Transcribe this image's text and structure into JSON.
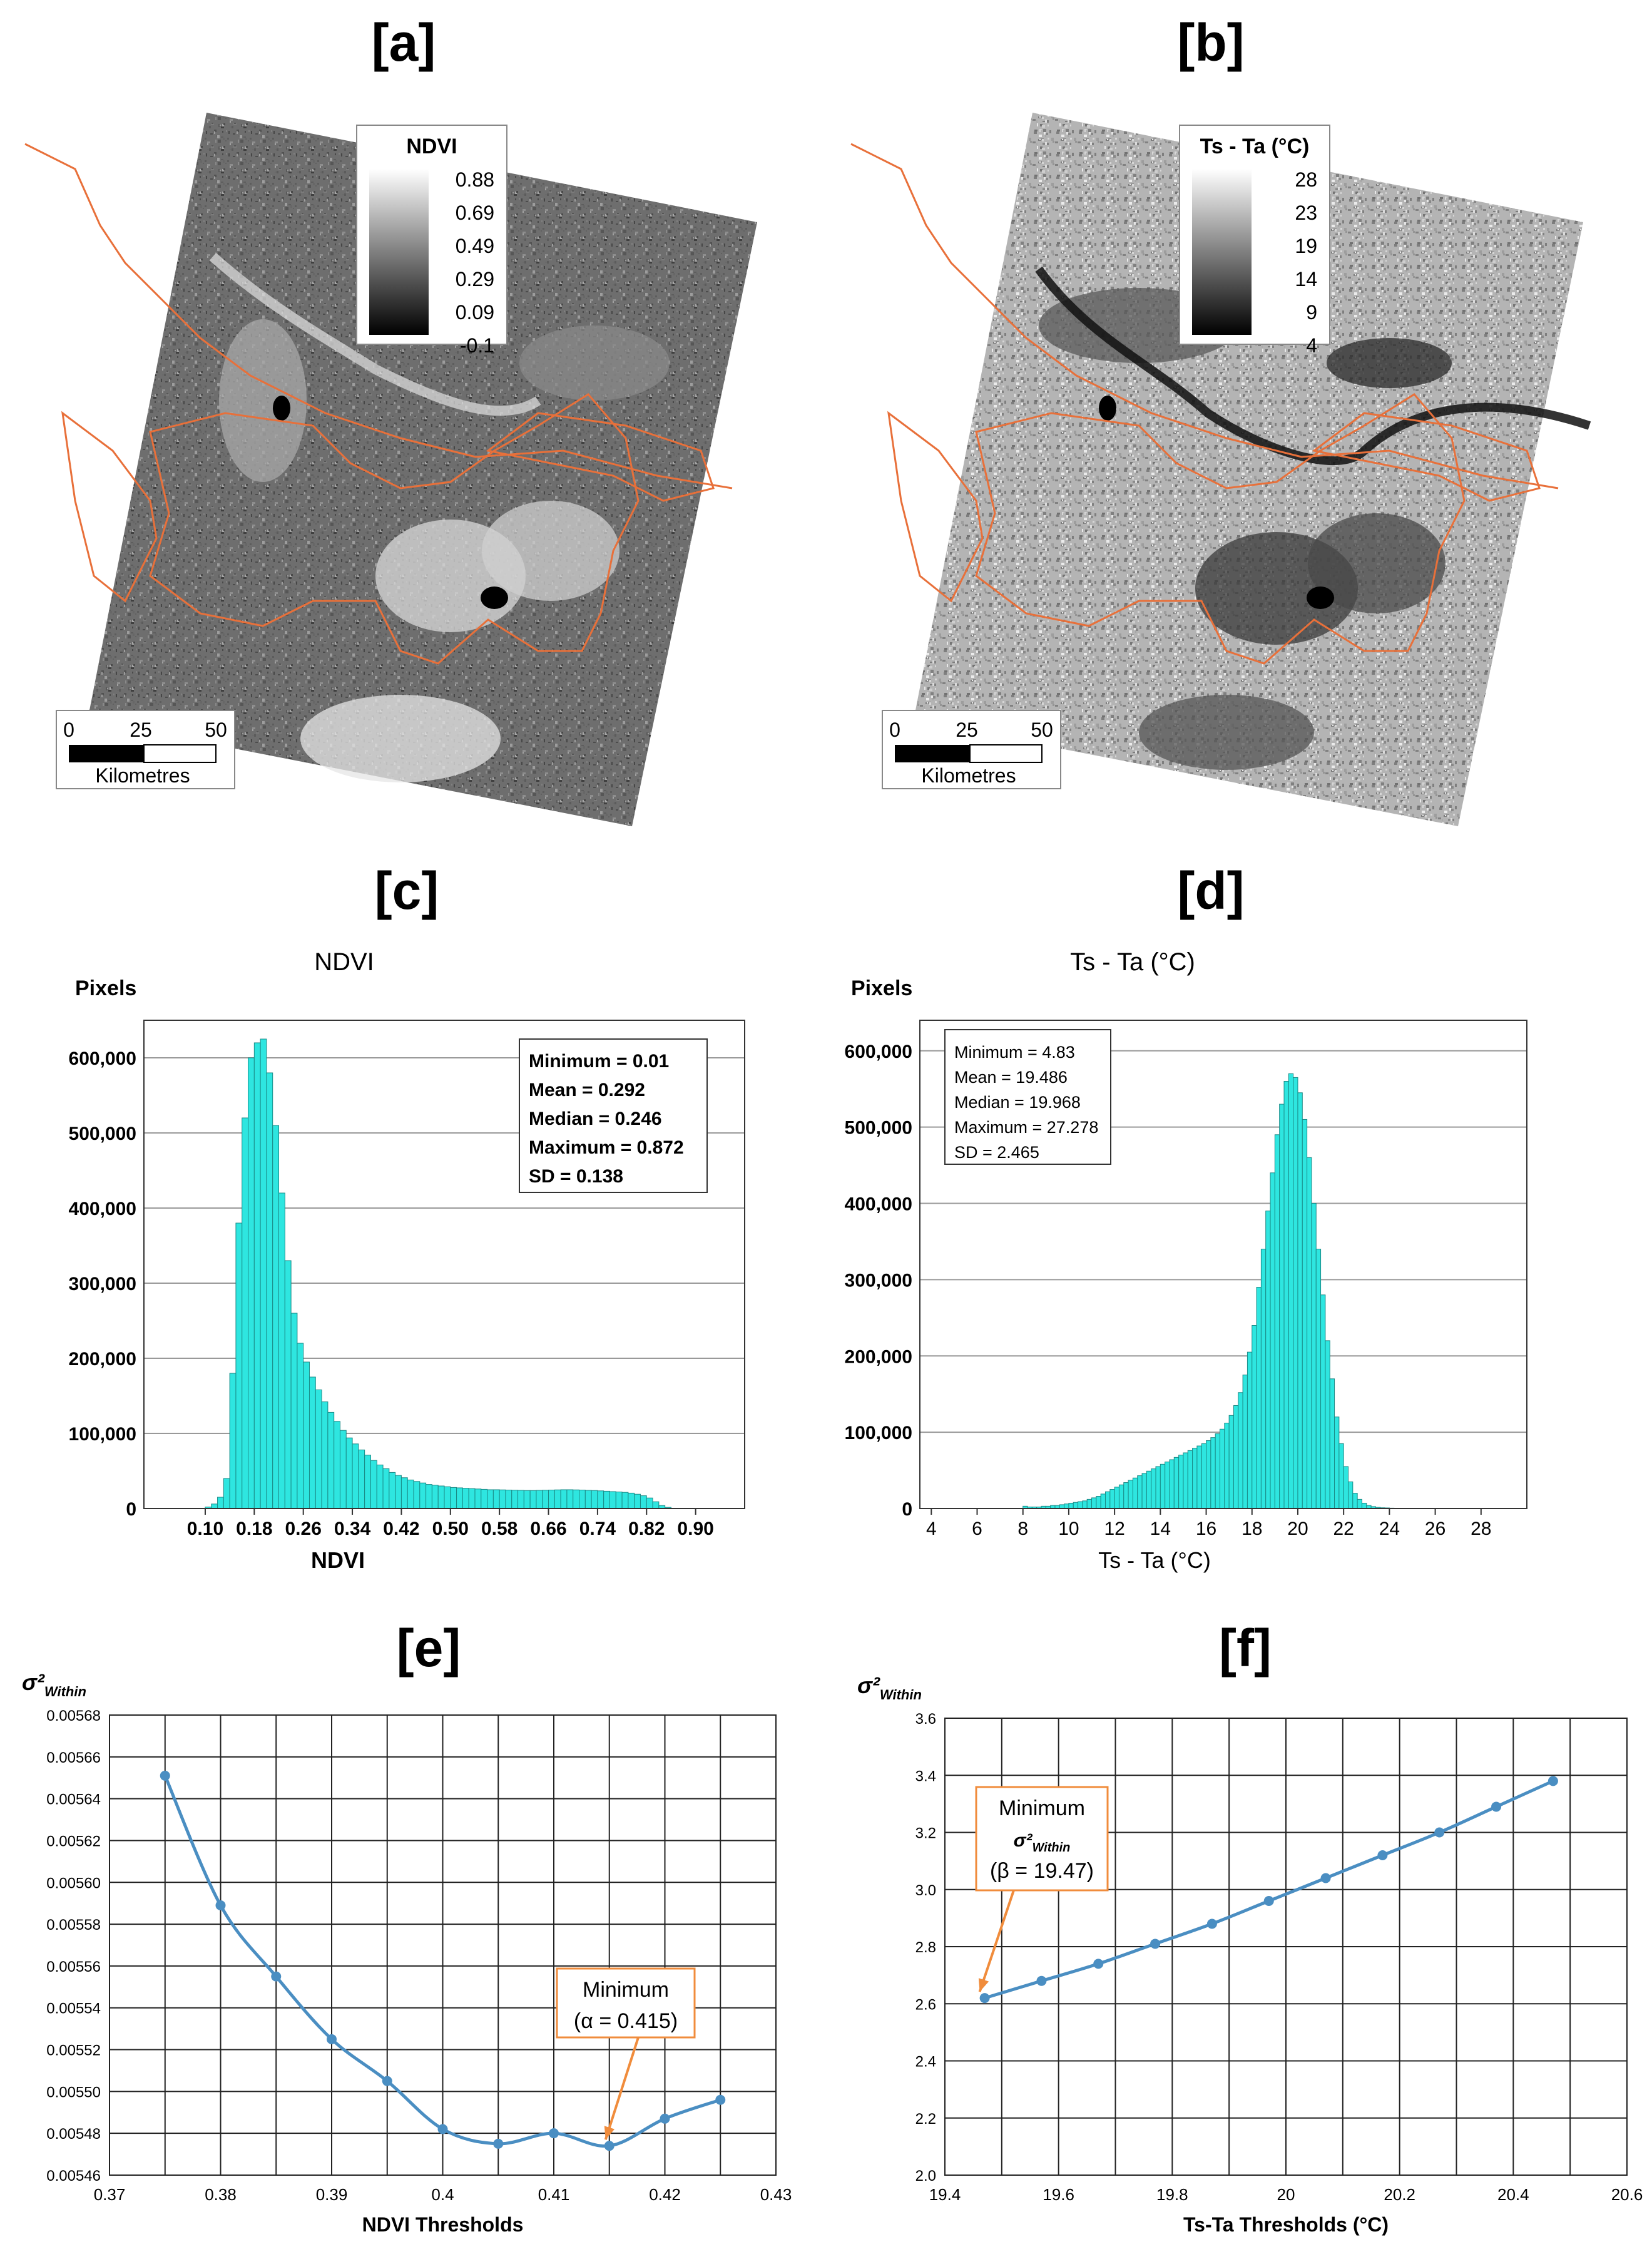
{
  "panels": {
    "a": {
      "letter": "[a]"
    },
    "b": {
      "letter": "[b]"
    },
    "c": {
      "letter": "[c]"
    },
    "d": {
      "letter": "[d]"
    },
    "e": {
      "letter": "[e]"
    },
    "f": {
      "letter": "[f]"
    }
  },
  "maps": [
    {
      "id": "a",
      "legend_title": "NDVI",
      "legend_values": [
        "0.88",
        "0.69",
        "0.49",
        "0.29",
        "0.09",
        "-0.1"
      ],
      "scalebar_ticks": [
        "0",
        "25",
        "50"
      ],
      "scalebar_unit": "Kilometres",
      "boundary_color": "#e8703a"
    },
    {
      "id": "b",
      "legend_title": "Ts - Ta (°C)",
      "legend_values": [
        "28",
        "23",
        "19",
        "14",
        "9",
        "4"
      ],
      "scalebar_ticks": [
        "0",
        "25",
        "50"
      ],
      "scalebar_unit": "Kilometres",
      "boundary_color": "#e8703a"
    }
  ],
  "chart_data": [
    {
      "id": "c",
      "type": "bar",
      "title": "NDVI",
      "xlabel": "NDVI",
      "ylabel": "Pixels",
      "xlim": [
        0.0,
        0.98
      ],
      "ylim": [
        0,
        650000
      ],
      "x_ticks": [
        "0.10",
        "0.18",
        "0.26",
        "0.34",
        "0.42",
        "0.50",
        "0.58",
        "0.66",
        "0.74",
        "0.82",
        "0.90"
      ],
      "y_ticks": [
        "0",
        "100,000",
        "200,000",
        "300,000",
        "400,000",
        "500,000",
        "600,000"
      ],
      "stats": [
        "Minimum = 0.01",
        "Mean = 0.292",
        "Median = 0.246",
        "Maximum = 0.872",
        "SD = 0.138"
      ],
      "bar_color": "#2ee6e0",
      "bin_width": 0.01,
      "x": [
        0.1,
        0.11,
        0.12,
        0.13,
        0.14,
        0.15,
        0.16,
        0.17,
        0.18,
        0.19,
        0.2,
        0.21,
        0.22,
        0.23,
        0.24,
        0.25,
        0.26,
        0.27,
        0.28,
        0.29,
        0.3,
        0.31,
        0.32,
        0.33,
        0.34,
        0.35,
        0.36,
        0.37,
        0.38,
        0.39,
        0.4,
        0.41,
        0.42,
        0.43,
        0.44,
        0.45,
        0.46,
        0.47,
        0.48,
        0.49,
        0.5,
        0.51,
        0.52,
        0.53,
        0.54,
        0.55,
        0.56,
        0.57,
        0.58,
        0.59,
        0.6,
        0.61,
        0.62,
        0.63,
        0.64,
        0.65,
        0.66,
        0.67,
        0.68,
        0.69,
        0.7,
        0.71,
        0.72,
        0.73,
        0.74,
        0.75,
        0.76,
        0.77,
        0.78,
        0.79,
        0.8,
        0.81,
        0.82,
        0.83,
        0.84,
        0.85
      ],
      "values": [
        2000,
        6000,
        15000,
        40000,
        180000,
        380000,
        520000,
        600000,
        620000,
        625000,
        580000,
        510000,
        420000,
        330000,
        260000,
        220000,
        195000,
        175000,
        158000,
        142000,
        128000,
        116000,
        104000,
        94000,
        86000,
        78000,
        71000,
        64000,
        58000,
        53000,
        48000,
        44000,
        41000,
        38000,
        36000,
        34000,
        32000,
        31000,
        30000,
        29000,
        28000,
        27500,
        27000,
        26500,
        26000,
        25500,
        25000,
        25000,
        24800,
        24600,
        24400,
        24200,
        24000,
        24000,
        24200,
        24400,
        24600,
        24800,
        25000,
        25000,
        24800,
        24600,
        24200,
        24000,
        23500,
        23000,
        22500,
        22000,
        21500,
        20500,
        19000,
        17000,
        14000,
        9000,
        4000,
        1500
      ]
    },
    {
      "id": "d",
      "type": "bar",
      "title": "Ts - Ta (°C)",
      "xlabel": "Ts - Ta (°C)",
      "ylabel": "Pixels",
      "xlim": [
        3.5,
        30.0
      ],
      "ylim": [
        0,
        640000
      ],
      "x_ticks": [
        "4",
        "6",
        "8",
        "10",
        "12",
        "14",
        "16",
        "18",
        "20",
        "22",
        "24",
        "26",
        "28"
      ],
      "y_ticks": [
        "0",
        "100,000",
        "200,000",
        "300,000",
        "400,000",
        "500,000",
        "600,000"
      ],
      "stats": [
        "Minimum = 4.83",
        "Mean = 19.486",
        "Median = 19.968",
        "Maximum = 27.278",
        "SD = 2.465"
      ],
      "bar_color": "#2ee6e0",
      "bin_width": 0.2,
      "x": [
        8.0,
        8.2,
        8.4,
        8.6,
        8.8,
        9.0,
        9.2,
        9.4,
        9.6,
        9.8,
        10.0,
        10.2,
        10.4,
        10.6,
        10.8,
        11.0,
        11.2,
        11.4,
        11.6,
        11.8,
        12.0,
        12.2,
        12.4,
        12.6,
        12.8,
        13.0,
        13.2,
        13.4,
        13.6,
        13.8,
        14.0,
        14.2,
        14.4,
        14.6,
        14.8,
        15.0,
        15.2,
        15.4,
        15.6,
        15.8,
        16.0,
        16.2,
        16.4,
        16.6,
        16.8,
        17.0,
        17.2,
        17.4,
        17.6,
        17.8,
        18.0,
        18.2,
        18.4,
        18.6,
        18.8,
        19.0,
        19.2,
        19.4,
        19.6,
        19.8,
        20.0,
        20.2,
        20.4,
        20.6,
        20.8,
        21.0,
        21.2,
        21.4,
        21.6,
        21.8,
        22.0,
        22.2,
        22.4,
        22.6,
        22.8,
        23.0,
        23.2,
        23.4,
        23.6,
        23.8,
        24.0,
        24.2,
        24.4,
        24.6,
        24.8,
        25.0
      ],
      "values": [
        3000,
        2000,
        2000,
        2000,
        3000,
        3000,
        4000,
        4000,
        5000,
        6000,
        7000,
        8000,
        9000,
        10000,
        12000,
        14000,
        16000,
        19000,
        22000,
        25000,
        28000,
        31000,
        34000,
        37000,
        40000,
        43000,
        46000,
        49000,
        52000,
        55000,
        58000,
        61000,
        64000,
        67000,
        70000,
        73000,
        76000,
        79000,
        82000,
        85000,
        89000,
        93000,
        98000,
        104000,
        112000,
        122000,
        135000,
        152000,
        175000,
        205000,
        240000,
        290000,
        340000,
        390000,
        440000,
        490000,
        530000,
        560000,
        570000,
        565000,
        545000,
        510000,
        460000,
        400000,
        340000,
        280000,
        220000,
        170000,
        120000,
        85000,
        55000,
        35000,
        20000,
        12000,
        7000,
        4000,
        2500,
        1500,
        1000,
        800,
        500,
        400,
        300,
        200,
        100,
        0
      ]
    },
    {
      "id": "e",
      "type": "line",
      "title": "",
      "xlabel": "NDVI Thresholds",
      "ylabel": "σ²Within",
      "xlim": [
        0.37,
        0.43
      ],
      "ylim": [
        0.00546,
        0.00568
      ],
      "x_ticks": [
        "0.37",
        "0.38",
        "0.39",
        "0.4",
        "0.41",
        "0.42",
        "0.43"
      ],
      "y_ticks": [
        "0.00546",
        "0.00548",
        "0.00550",
        "0.00552",
        "0.00554",
        "0.00556",
        "0.00558",
        "0.00560",
        "0.00562",
        "0.00564",
        "0.00566",
        "0.00568"
      ],
      "x": [
        0.375,
        0.38,
        0.385,
        0.39,
        0.395,
        0.4,
        0.405,
        0.41,
        0.415,
        0.42,
        0.425
      ],
      "y": [
        0.005651,
        0.005589,
        0.005555,
        0.005525,
        0.005505,
        0.005482,
        0.005475,
        0.00548,
        0.005474,
        0.005487,
        0.005496
      ],
      "line_color": "#4a8ec2",
      "annotation": {
        "lines": [
          "Minimum",
          "(α  = 0.415)"
        ],
        "x": 0.415,
        "y": 0.005474,
        "color": "#f08c3c"
      }
    },
    {
      "id": "f",
      "type": "line",
      "title": "",
      "xlabel": "Ts-Ta Thresholds (°C)",
      "ylabel": "σ²Within",
      "xlim": [
        19.4,
        20.6
      ],
      "ylim": [
        2.0,
        3.6
      ],
      "x_ticks": [
        "19.4",
        "19.6",
        "19.8",
        "20",
        "20.2",
        "20.4",
        "20.6"
      ],
      "y_ticks": [
        "2.0",
        "2.2",
        "2.4",
        "2.6",
        "2.8",
        "3.0",
        "3.2",
        "3.4",
        "3.6"
      ],
      "x": [
        19.47,
        19.57,
        19.67,
        19.77,
        19.87,
        19.97,
        20.07,
        20.17,
        20.27,
        20.37,
        20.47
      ],
      "y": [
        2.62,
        2.68,
        2.74,
        2.81,
        2.88,
        2.96,
        3.04,
        3.12,
        3.2,
        3.29,
        3.38
      ],
      "line_color": "#4a8ec2",
      "annotation": {
        "lines": [
          "Minimum",
          "σ²Within",
          "(β = 19.47)"
        ],
        "x": 19.47,
        "y": 2.62,
        "color": "#f08c3c"
      }
    }
  ]
}
